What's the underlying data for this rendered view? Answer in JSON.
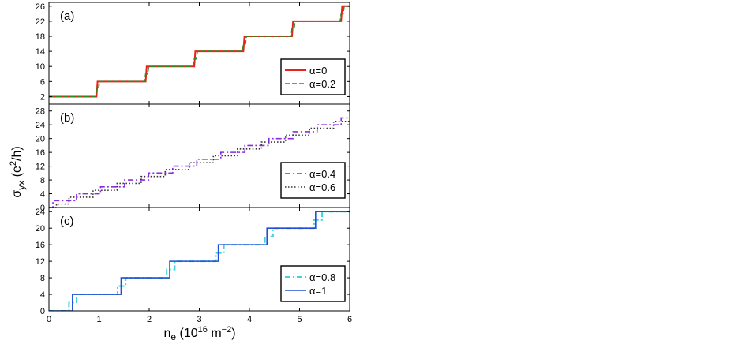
{
  "figure": {
    "ylabel_main": "σ",
    "ylabel_sub": "yx",
    "ylabel_unit_pre": " (e",
    "ylabel_unit_sup": "2",
    "ylabel_unit_post": "/h)",
    "xlabel_main": "n",
    "xlabel_sub": "e",
    "xlabel_unit_pre": " (10",
    "xlabel_unit_sup1": "16",
    "xlabel_unit_mid": " m",
    "xlabel_unit_sup2": "−2",
    "xlabel_unit_post": ")"
  },
  "chart_data": [
    {
      "type": "line",
      "panel_label": "(a)",
      "xlim": [
        0,
        6
      ],
      "ylim": [
        0,
        27
      ],
      "yticks": [
        2,
        6,
        10,
        14,
        18,
        22,
        26
      ],
      "xticks": [],
      "legend_position": "lower-right",
      "series": [
        {
          "name": "α=0",
          "color": "#e8221b",
          "dash": "solid",
          "x": [
            0,
            0.95,
            0.97,
            1.93,
            1.95,
            2.9,
            2.92,
            3.88,
            3.9,
            4.85,
            4.87,
            5.83,
            5.85,
            6.0
          ],
          "y": [
            2,
            2,
            6,
            6,
            10,
            10,
            14,
            14,
            18,
            18,
            22,
            22,
            26,
            26
          ]
        },
        {
          "name": "α=0.2",
          "color": "#2e8b1e",
          "dash": "dashed",
          "x": [
            0,
            0.93,
            0.95,
            0.99,
            1.01,
            1.91,
            1.93,
            1.97,
            1.99,
            2.88,
            2.9,
            2.94,
            2.96,
            3.86,
            3.88,
            3.92,
            3.94,
            4.83,
            4.85,
            4.89,
            4.91,
            5.81,
            5.83,
            5.87,
            5.89,
            6.0
          ],
          "y": [
            2,
            2,
            4,
            4,
            6,
            6,
            8,
            8,
            10,
            10,
            12,
            12,
            14,
            14,
            16,
            16,
            18,
            18,
            20,
            20,
            22,
            22,
            24,
            24,
            26,
            26
          ]
        }
      ]
    },
    {
      "type": "line",
      "panel_label": "(b)",
      "xlim": [
        0,
        6
      ],
      "ylim": [
        0,
        30
      ],
      "yticks": [
        0,
        4,
        8,
        12,
        16,
        20,
        24,
        28
      ],
      "xticks": [],
      "legend_position": "lower-right",
      "series": [
        {
          "name": "α=0.4",
          "color": "#8a2be2",
          "dash": "dashdot",
          "x": [
            0,
            0.08,
            0.08,
            0.55,
            0.55,
            1.03,
            1.03,
            1.51,
            1.51,
            1.99,
            1.99,
            2.47,
            2.47,
            2.95,
            2.95,
            3.43,
            3.43,
            3.91,
            3.91,
            4.39,
            4.39,
            4.87,
            4.87,
            5.35,
            5.35,
            5.83,
            5.83,
            6.0
          ],
          "y": [
            0,
            0,
            2,
            2,
            4,
            4,
            6,
            6,
            8,
            8,
            10,
            10,
            12,
            12,
            14,
            14,
            16,
            16,
            18,
            18,
            20,
            20,
            22,
            22,
            24,
            24,
            26,
            26
          ]
        },
        {
          "name": "α=0.6",
          "color": "#333333",
          "dash": "dotted",
          "x": [
            0,
            0.15,
            0.15,
            0.4,
            0.4,
            0.88,
            0.88,
            1.36,
            1.36,
            1.84,
            1.84,
            2.32,
            2.32,
            2.8,
            2.8,
            3.28,
            3.28,
            3.76,
            3.76,
            4.24,
            4.24,
            4.72,
            4.72,
            5.2,
            5.2,
            5.68,
            5.68,
            6.0
          ],
          "y": [
            0,
            0,
            1,
            1,
            3,
            3,
            5,
            5,
            7,
            7,
            9,
            9,
            11,
            11,
            13,
            13,
            15,
            15,
            17,
            17,
            19,
            19,
            21,
            21,
            23,
            23,
            25,
            25
          ]
        }
      ]
    },
    {
      "type": "line",
      "panel_label": "(c)",
      "xlim": [
        0,
        6
      ],
      "ylim": [
        0,
        25
      ],
      "yticks": [
        0,
        4,
        8,
        12,
        16,
        20,
        24
      ],
      "xticks": [
        0,
        1,
        2,
        3,
        4,
        5,
        6
      ],
      "legend_position": "lower-right",
      "series": [
        {
          "name": "α=0.8",
          "color": "#3fd3df",
          "dash": "dashdot",
          "x": [
            0,
            0.4,
            0.4,
            0.55,
            0.55,
            1.37,
            1.37,
            1.53,
            1.53,
            2.35,
            2.35,
            2.51,
            2.51,
            3.33,
            3.33,
            3.49,
            3.49,
            4.31,
            4.31,
            4.47,
            4.47,
            5.29,
            5.29,
            5.45,
            5.45,
            6.0
          ],
          "y": [
            0,
            0,
            2,
            2,
            4,
            4,
            6,
            6,
            8,
            8,
            10,
            10,
            12,
            12,
            14,
            14,
            16,
            16,
            18,
            18,
            20,
            20,
            22,
            22,
            24,
            24
          ]
        },
        {
          "name": "α=1",
          "color": "#1f4fd6",
          "dash": "solid",
          "x": [
            0,
            0.47,
            0.47,
            1.44,
            1.44,
            2.41,
            2.41,
            3.38,
            3.38,
            4.35,
            4.35,
            5.32,
            5.32,
            6.0
          ],
          "y": [
            0,
            0,
            4,
            4,
            8,
            8,
            12,
            12,
            16,
            16,
            20,
            20,
            24,
            24
          ]
        }
      ]
    }
  ]
}
